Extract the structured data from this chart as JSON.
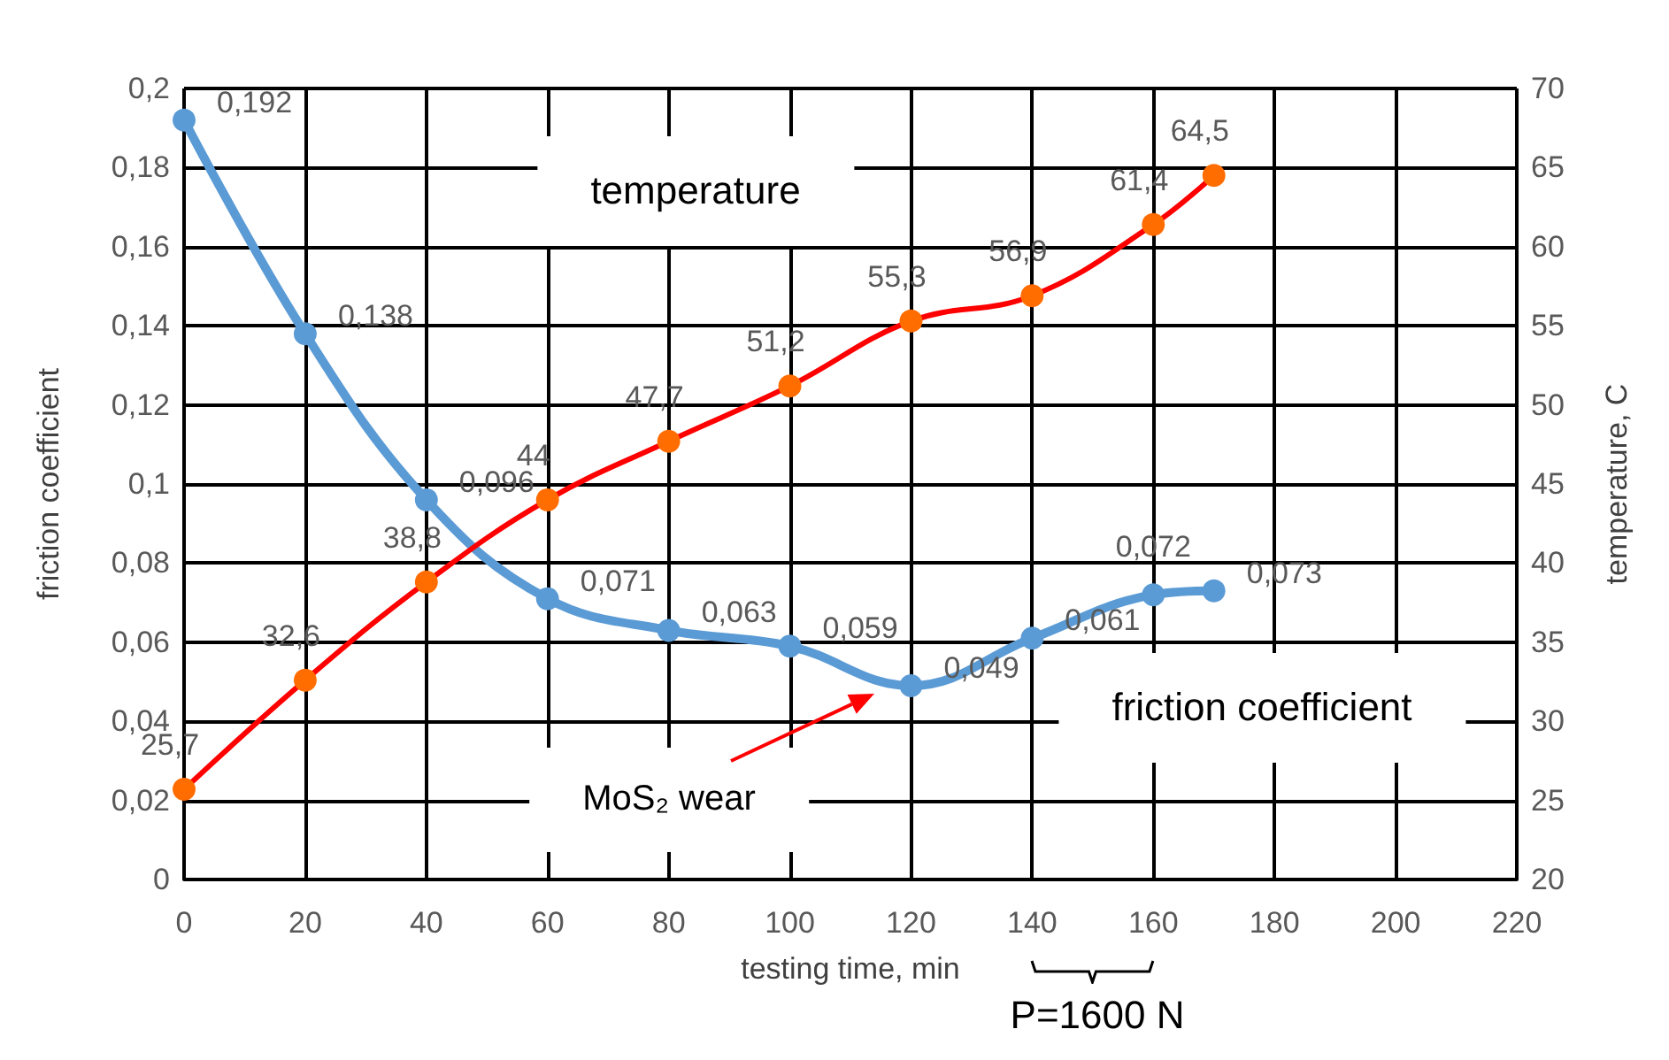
{
  "chart_data": {
    "type": "line",
    "xlabel": "testing time, min",
    "ylabel": "friction coefficient",
    "y2label": "temperature, C",
    "x": [
      0,
      20,
      40,
      60,
      80,
      100,
      120,
      140,
      160,
      170
    ],
    "xlim": [
      0,
      220
    ],
    "xticks": [
      0,
      20,
      40,
      60,
      80,
      100,
      120,
      140,
      160,
      180,
      200,
      220
    ],
    "ylim": [
      0,
      0.2
    ],
    "yticks": [
      0,
      {
        "value": 0.02,
        "label": "0,02"
      },
      {
        "value": 0.04,
        "label": "0,04"
      },
      {
        "value": 0.06,
        "label": "0,06"
      },
      {
        "value": 0.08,
        "label": "0,08"
      },
      {
        "value": 0.1,
        "label": "0,1"
      },
      {
        "value": 0.12,
        "label": "0,12"
      },
      {
        "value": 0.14,
        "label": "0,14"
      },
      {
        "value": 0.16,
        "label": "0,16"
      },
      {
        "value": 0.18,
        "label": "0,18"
      },
      {
        "value": 0.2,
        "label": "0,2"
      }
    ],
    "y2lim": [
      20,
      70
    ],
    "y2ticks": [
      20,
      25,
      30,
      35,
      40,
      45,
      50,
      55,
      60,
      65,
      70
    ],
    "grid": true,
    "marker": "circle",
    "line_style": "solid",
    "series": [
      {
        "color": "#5b9bd5",
        "values": [
          0.192,
          0.138,
          0.096,
          0.071,
          0.063,
          0.059,
          0.049,
          0.061,
          0.072,
          0.073
        ],
        "value_labels": [
          "0,192",
          "0,138",
          "0,096",
          "0,071",
          "0,063",
          "0,059",
          "0,049",
          "0,061",
          "0,072",
          "0,073"
        ]
      },
      {
        "color": "#ff0000",
        "colors": [
          "#ff6d00",
          "#ff6d00",
          "#ff6d00",
          "#ff6d00",
          "#ff6d00",
          "#ff6d00",
          "#ff6d00",
          "#ff6d00",
          "#ff6d00",
          "#ff6d00"
        ],
        "axis": "y2",
        "values": [
          25.7,
          32.6,
          38.8,
          44,
          47.7,
          51.2,
          55.3,
          56.9,
          61.4,
          64.5
        ],
        "value_labels": [
          "25,7",
          "32,6",
          "38,8",
          "44",
          "47,7",
          "51,2",
          "55,3",
          "56,9",
          "61,4",
          "64,5"
        ]
      }
    ],
    "annotations": [
      "temperature",
      "friction coefficient",
      "P=1600 N",
      "MoS₂ wear"
    ]
  }
}
